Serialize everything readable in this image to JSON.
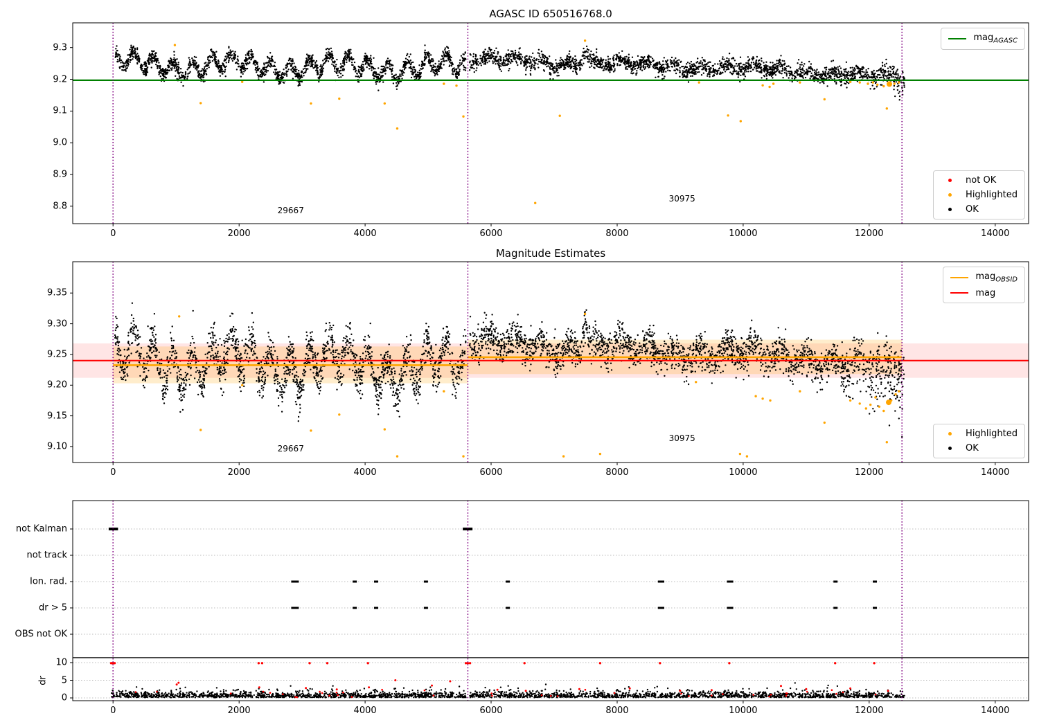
{
  "colors": {
    "ok": "#000000",
    "highlighted": "#ffa500",
    "not_ok": "#ff0000",
    "mag_agasc_line": "#008000",
    "mag_line": "#ff0000",
    "mag_obsid_line": "#ffa500",
    "obsid_divider": "#800080",
    "grid": "#bbbbbb",
    "band_red": "rgba(255,0,0,0.10)",
    "band_orange": "rgba(255,165,0,0.20)"
  },
  "xticks": [
    "0",
    "2000",
    "4000",
    "6000",
    "8000",
    "10000",
    "12000",
    "14000"
  ],
  "chart_data": [
    {
      "type": "scatter",
      "title": "AGASC ID 650516768.0",
      "xlim": [
        -640,
        14530
      ],
      "ylim": [
        8.745,
        9.378
      ],
      "yticks": [
        "8.8",
        "8.9",
        "9.0",
        "9.1",
        "9.2",
        "9.3"
      ],
      "lines": [
        {
          "y": 9.197,
          "color": "#008000",
          "lw": 2.2
        }
      ],
      "vlines": [
        0,
        5630,
        12520
      ],
      "bands": [],
      "obsids": [
        {
          "label": "29667",
          "x": 2820,
          "y": 8.787
        },
        {
          "label": "30975",
          "x": 9030,
          "y": 8.824
        }
      ],
      "legends": [
        {
          "corner": "tr",
          "items": [
            {
              "marker": "line",
              "color": "#008000",
              "label": "mag",
              "sub": "AGASC"
            }
          ]
        },
        {
          "corner": "br",
          "items": [
            {
              "marker": "dot",
              "color": "#ff0000",
              "label": "not OK"
            },
            {
              "marker": "dot",
              "color": "#ffa500",
              "label": "Highlighted"
            },
            {
              "marker": "dot",
              "color": "#000000",
              "label": "OK"
            }
          ]
        }
      ],
      "ok_clusters": [
        {
          "seed": 11,
          "x0": 30,
          "x1": 5600,
          "n": 2000,
          "base": 9.247,
          "trend": -0.012,
          "wave_amp": 0.026,
          "wave_period": 310,
          "phase": 1.2,
          "wave2_amp": 0.016,
          "wave2_period": 1650,
          "phase2": 0.5,
          "noise": 0.012
        },
        {
          "seed": 12,
          "x0": 5655,
          "x1": 12560,
          "n": 2300,
          "base": 9.262,
          "trend": -0.045,
          "wave_amp": 0.01,
          "wave_period": 420,
          "phase": 0.3,
          "wave2_amp": 0.006,
          "wave2_period": 2000,
          "phase2": 1.1,
          "noise": 0.012,
          "bump": {
            "x": 7490,
            "w": 55,
            "amp": 0.05
          },
          "flare": {
            "start": 10800,
            "amp": 0.05
          }
        }
      ],
      "highlighted": [
        [
          980,
          9.308
        ],
        [
          1390,
          9.125
        ],
        [
          2050,
          9.192
        ],
        [
          3140,
          9.124
        ],
        [
          3590,
          9.139
        ],
        [
          4310,
          9.124
        ],
        [
          4510,
          9.045
        ],
        [
          5250,
          9.186
        ],
        [
          5450,
          9.18
        ],
        [
          5560,
          9.083
        ],
        [
          6700,
          8.81
        ],
        [
          7090,
          9.085
        ],
        [
          7490,
          9.322
        ],
        [
          9300,
          9.19
        ],
        [
          9760,
          9.086
        ],
        [
          9960,
          9.068
        ],
        [
          10310,
          9.181
        ],
        [
          10420,
          9.176
        ],
        [
          10480,
          9.186
        ],
        [
          10900,
          9.19
        ],
        [
          11290,
          9.137
        ],
        [
          11700,
          9.192
        ],
        [
          11850,
          9.19
        ],
        [
          11980,
          9.186
        ],
        [
          12060,
          9.19
        ],
        [
          12130,
          9.183
        ],
        [
          12230,
          9.178
        ],
        [
          12280,
          9.108
        ],
        [
          12330,
          9.181
        ],
        [
          12400,
          9.186
        ],
        [
          12470,
          9.19
        ]
      ],
      "highlighted_big": [
        [
          12320,
          9.185
        ]
      ]
    },
    {
      "type": "scatter",
      "title": "Magnitude Estimates",
      "xlim": [
        -640,
        14530
      ],
      "ylim": [
        9.074,
        9.401
      ],
      "yticks": [
        "9.10",
        "9.15",
        "9.20",
        "9.25",
        "9.30",
        "9.35"
      ],
      "lines": [
        {
          "y": 9.24,
          "color": "#ff0000",
          "lw": 2.2
        },
        {
          "y": 9.2325,
          "x0": 0,
          "x1": 5630,
          "color": "#ffa500",
          "lw": 2.6
        },
        {
          "y": 9.2455,
          "x0": 5630,
          "x1": 12520,
          "color": "#ffa500",
          "lw": 2.6
        }
      ],
      "vlines": [
        0,
        5630,
        12520
      ],
      "bands": [
        {
          "y0": 9.212,
          "y1": 9.268,
          "color": "rgba(255,0,0,0.10)"
        },
        {
          "y0": 9.203,
          "y1": 9.263,
          "x0": 0,
          "x1": 5630,
          "color": "rgba(255,165,0,0.20)"
        },
        {
          "y0": 9.218,
          "y1": 9.274,
          "x0": 5630,
          "x1": 12520,
          "color": "rgba(255,165,0,0.20)"
        }
      ],
      "obsids": [
        {
          "label": "29667",
          "x": 2820,
          "y": 9.096
        },
        {
          "label": "30975",
          "x": 9030,
          "y": 9.114
        }
      ],
      "legends": [
        {
          "corner": "tr",
          "items": [
            {
              "marker": "line",
              "color": "#ffa500",
              "label": "mag",
              "sub": "OBSID"
            },
            {
              "marker": "line",
              "color": "#ff0000",
              "label": "mag"
            }
          ]
        },
        {
          "corner": "br",
          "items": [
            {
              "marker": "dot",
              "color": "#ffa500",
              "label": "Highlighted"
            },
            {
              "marker": "dot",
              "color": "#000000",
              "label": "OK"
            }
          ]
        }
      ],
      "ok_clusters": [
        {
          "seed": 21,
          "x0": 30,
          "x1": 5600,
          "n": 2000,
          "base": 9.243,
          "trend": -0.015,
          "wave_amp": 0.03,
          "wave_period": 310,
          "phase": 1.2,
          "wave2_amp": 0.018,
          "wave2_period": 1650,
          "phase2": 0.5,
          "noise": 0.016
        },
        {
          "seed": 22,
          "x0": 5655,
          "x1": 12560,
          "n": 2300,
          "base": 9.268,
          "trend": -0.028,
          "wave_amp": 0.011,
          "wave_period": 420,
          "phase": 0.3,
          "wave2_amp": 0.007,
          "wave2_period": 2000,
          "phase2": 1.1,
          "noise": 0.014,
          "bump": {
            "x": 7490,
            "w": 55,
            "amp": 0.05
          },
          "flare": {
            "start": 11000,
            "amp": 0.09
          }
        }
      ],
      "highlighted": [
        [
          1050,
          9.312
        ],
        [
          1390,
          9.127
        ],
        [
          2050,
          9.2
        ],
        [
          3140,
          9.126
        ],
        [
          3590,
          9.152
        ],
        [
          4310,
          9.128
        ],
        [
          4510,
          9.084
        ],
        [
          5250,
          9.19
        ],
        [
          5560,
          9.084
        ],
        [
          7150,
          9.084
        ],
        [
          7490,
          9.316
        ],
        [
          7730,
          9.088
        ],
        [
          9250,
          9.205
        ],
        [
          9950,
          9.088
        ],
        [
          10060,
          9.084
        ],
        [
          10200,
          9.182
        ],
        [
          10310,
          9.178
        ],
        [
          10430,
          9.175
        ],
        [
          10900,
          9.19
        ],
        [
          11290,
          9.139
        ],
        [
          11700,
          9.175
        ],
        [
          11850,
          9.17
        ],
        [
          11950,
          9.162
        ],
        [
          12020,
          9.168
        ],
        [
          12100,
          9.18
        ],
        [
          12160,
          9.165
        ],
        [
          12230,
          9.158
        ],
        [
          12280,
          9.107
        ],
        [
          12350,
          9.175
        ],
        [
          12420,
          9.185
        ],
        [
          12470,
          9.19
        ]
      ],
      "highlighted_big": [
        [
          12310,
          9.172
        ]
      ]
    },
    {
      "type": "flags",
      "xlim": [
        -640,
        14530
      ],
      "categories": [
        "not Kalman",
        "not track",
        "Ion. rad.",
        "dr > 5",
        "OBS not OK"
      ],
      "flag_marks": [
        {
          "row": 0,
          "xs": [
            -20,
            30,
            5600,
            5655
          ]
        },
        {
          "row": 2,
          "xs": [
            2860,
            2915,
            3835,
            4175,
            4965,
            6265,
            8680,
            8715,
            9775,
            9810,
            11465,
            12090
          ]
        },
        {
          "row": 3,
          "xs": [
            2860,
            2915,
            3835,
            4175,
            4965,
            6265,
            8680,
            8715,
            9775,
            9810,
            11465,
            12090
          ]
        }
      ],
      "dr": {
        "label": "dr",
        "ticks": [
          "0",
          "5",
          "10"
        ],
        "clip_value": 10,
        "cap_line": 11.4,
        "red_clipped_x": [
          -30,
          -5,
          25,
          2310,
          2365,
          3120,
          3400,
          4045,
          5600,
          5630,
          5665,
          6530,
          7730,
          8680,
          9780,
          11460,
          12080
        ],
        "red_points": [
          [
            1010,
            3.8
          ],
          [
            1040,
            4.3
          ],
          [
            2320,
            3.0
          ],
          [
            3060,
            2.8
          ],
          [
            3550,
            2.4
          ],
          [
            4060,
            3.0
          ],
          [
            4480,
            5.0
          ],
          [
            5060,
            3.5
          ],
          [
            5350,
            4.7
          ],
          [
            6100,
            2.3
          ],
          [
            6550,
            2.0
          ],
          [
            7400,
            2.5
          ],
          [
            8200,
            2.7
          ],
          [
            9000,
            2.0
          ],
          [
            9500,
            2.2
          ],
          [
            10600,
            3.4
          ],
          [
            11000,
            2.5
          ],
          [
            11700,
            2.7
          ],
          [
            12300,
            2.0
          ]
        ],
        "ok_clusters": [
          {
            "seed": 31,
            "x0": -30,
            "x1": 5600,
            "n": 1200
          },
          {
            "seed": 32,
            "x0": 5660,
            "x1": 12560,
            "n": 1400
          }
        ],
        "red_scatter": {
          "seed": 41,
          "n": 40,
          "ymax": 2.2
        }
      },
      "vlines": [
        0,
        5630,
        12520
      ]
    }
  ]
}
